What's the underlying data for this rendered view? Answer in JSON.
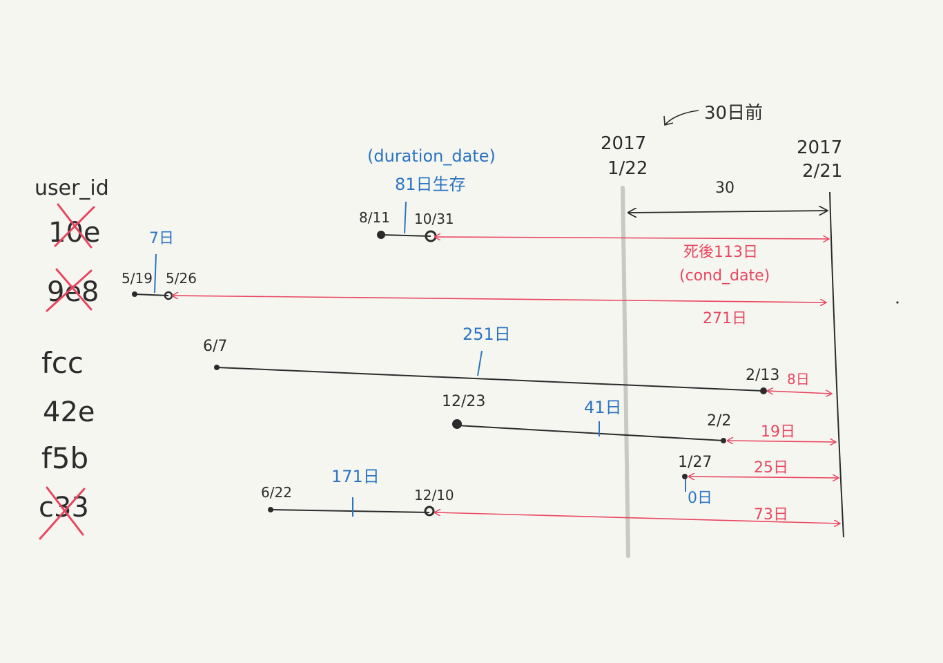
{
  "header": {
    "thirty_days_before": "30日前",
    "date_jan22_year": "2017",
    "date_jan22_day": "1/22",
    "date_feb21_year": "2017",
    "date_feb21_day": "2/21",
    "window_span": "30",
    "duration_label": "(duration_date)",
    "cond_label": "(cond_date)"
  },
  "column_header": "user_id",
  "users": [
    {
      "id": "10e",
      "excluded": true,
      "start": "8/11",
      "end": "10/31",
      "duration": "81日生存",
      "gap": "死後113日",
      "row": 0
    },
    {
      "id": "9e8",
      "excluded": true,
      "start": "5/19",
      "end": "5/26",
      "duration": "7日",
      "gap": "271日",
      "row": 1
    },
    {
      "id": "fcc",
      "excluded": false,
      "start": "6/7",
      "end": "2/13",
      "duration": "251日",
      "gap": "8日",
      "row": 2
    },
    {
      "id": "42e",
      "excluded": false,
      "start": "12/23",
      "end": "2/2",
      "duration": "41日",
      "gap": "19日",
      "row": 3
    },
    {
      "id": "f5b",
      "excluded": false,
      "start": "",
      "end": "1/27",
      "duration": "0日",
      "gap": "25日",
      "row": 4
    },
    {
      "id": "c33",
      "excluded": true,
      "start": "6/22",
      "end": "12/10",
      "duration": "171日",
      "gap": "73日",
      "row": 5
    }
  ],
  "colors": {
    "ink": "#2b2b2b",
    "duration": "#2a74c2",
    "gap": "#e8465f",
    "cutoff_line": "#c8c8c4",
    "background": "#f6f6f1"
  }
}
